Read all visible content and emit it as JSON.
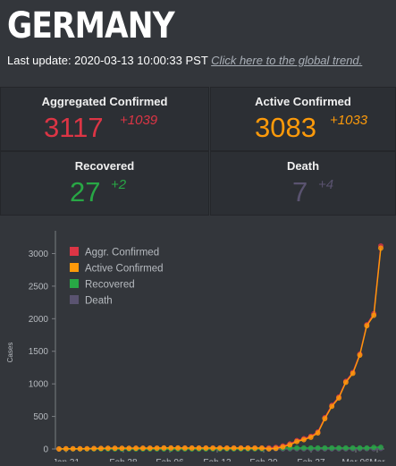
{
  "header": {
    "title": "GERMANY",
    "last_update_prefix": "Last update: 2020-03-13 10:00:33 PST",
    "global_link": "Click here to the global trend."
  },
  "cards": [
    {
      "label": "Aggregated Confirmed",
      "value": "3117",
      "delta": "+1039",
      "color": "#dc3545"
    },
    {
      "label": "Active Confirmed",
      "value": "3083",
      "delta": "+1033",
      "color": "#fd9a0a"
    },
    {
      "label": "Recovered",
      "value": "27",
      "delta": "+2",
      "color": "#28a745"
    },
    {
      "label": "Death",
      "value": "7",
      "delta": "+4",
      "color": "#5a5370"
    }
  ],
  "chart_data": {
    "type": "line",
    "ylabel": "Cases",
    "ylim": [
      0,
      3350
    ],
    "yticks": [
      0,
      500,
      1000,
      1500,
      2000,
      2500,
      3000
    ],
    "xtick_labels": [
      "Jan 31",
      "Feb 28",
      "Feb 06",
      "Feb 13",
      "Feb 20",
      "Feb 27",
      "Mar 06",
      "Mar"
    ],
    "legend_position": "top-left",
    "x": [
      "Jan 27",
      "Jan 28",
      "Jan 29",
      "Jan 30",
      "Jan 31",
      "Feb 01",
      "Feb 02",
      "Feb 03",
      "Feb 04",
      "Feb 05",
      "Feb 06",
      "Feb 07",
      "Feb 08",
      "Feb 09",
      "Feb 10",
      "Feb 11",
      "Feb 12",
      "Feb 13",
      "Feb 14",
      "Feb 15",
      "Feb 16",
      "Feb 17",
      "Feb 18",
      "Feb 19",
      "Feb 20",
      "Feb 21",
      "Feb 22",
      "Feb 23",
      "Feb 24",
      "Feb 25",
      "Feb 26",
      "Feb 27",
      "Feb 28",
      "Feb 29",
      "Mar 01",
      "Mar 02",
      "Mar 03",
      "Mar 04",
      "Mar 05",
      "Mar 06",
      "Mar 07",
      "Mar 08",
      "Mar 09",
      "Mar 10",
      "Mar 11",
      "Mar 12",
      "Mar 13"
    ],
    "series": [
      {
        "name": "Aggr. Confirmed",
        "color": "#dc3545",
        "values": [
          1,
          4,
          4,
          4,
          5,
          8,
          10,
          12,
          12,
          12,
          12,
          13,
          13,
          14,
          14,
          16,
          16,
          16,
          16,
          16,
          16,
          16,
          16,
          16,
          16,
          16,
          16,
          16,
          16,
          16,
          18,
          26,
          48,
          79,
          130,
          159,
          196,
          262,
          482,
          670,
          799,
          1040,
          1176,
          1457,
          1908,
          2078,
          3117
        ]
      },
      {
        "name": "Active Confirmed",
        "color": "#fd9a0a",
        "values": [
          1,
          4,
          4,
          4,
          5,
          8,
          10,
          12,
          12,
          12,
          12,
          13,
          13,
          14,
          14,
          16,
          16,
          16,
          15,
          15,
          15,
          15,
          14,
          14,
          14,
          14,
          14,
          14,
          14,
          14,
          2,
          10,
          32,
          63,
          114,
          143,
          180,
          246,
          466,
          654,
          783,
          1024,
          1160,
          1441,
          1892,
          2052,
          3083
        ]
      },
      {
        "name": "Recovered",
        "color": "#28a745",
        "values": [
          0,
          0,
          0,
          0,
          0,
          0,
          0,
          0,
          0,
          0,
          0,
          0,
          0,
          0,
          0,
          0,
          0,
          0,
          1,
          1,
          1,
          1,
          2,
          2,
          2,
          2,
          2,
          2,
          2,
          2,
          16,
          16,
          16,
          16,
          16,
          16,
          16,
          16,
          16,
          16,
          16,
          16,
          16,
          16,
          16,
          25,
          27
        ]
      },
      {
        "name": "Death",
        "color": "#5a5370",
        "values": [
          0,
          0,
          0,
          0,
          0,
          0,
          0,
          0,
          0,
          0,
          0,
          0,
          0,
          0,
          0,
          0,
          0,
          0,
          0,
          0,
          0,
          0,
          0,
          0,
          0,
          0,
          0,
          0,
          0,
          0,
          0,
          0,
          0,
          0,
          0,
          0,
          0,
          0,
          0,
          0,
          0,
          0,
          0,
          2,
          3,
          3,
          7
        ]
      }
    ]
  }
}
